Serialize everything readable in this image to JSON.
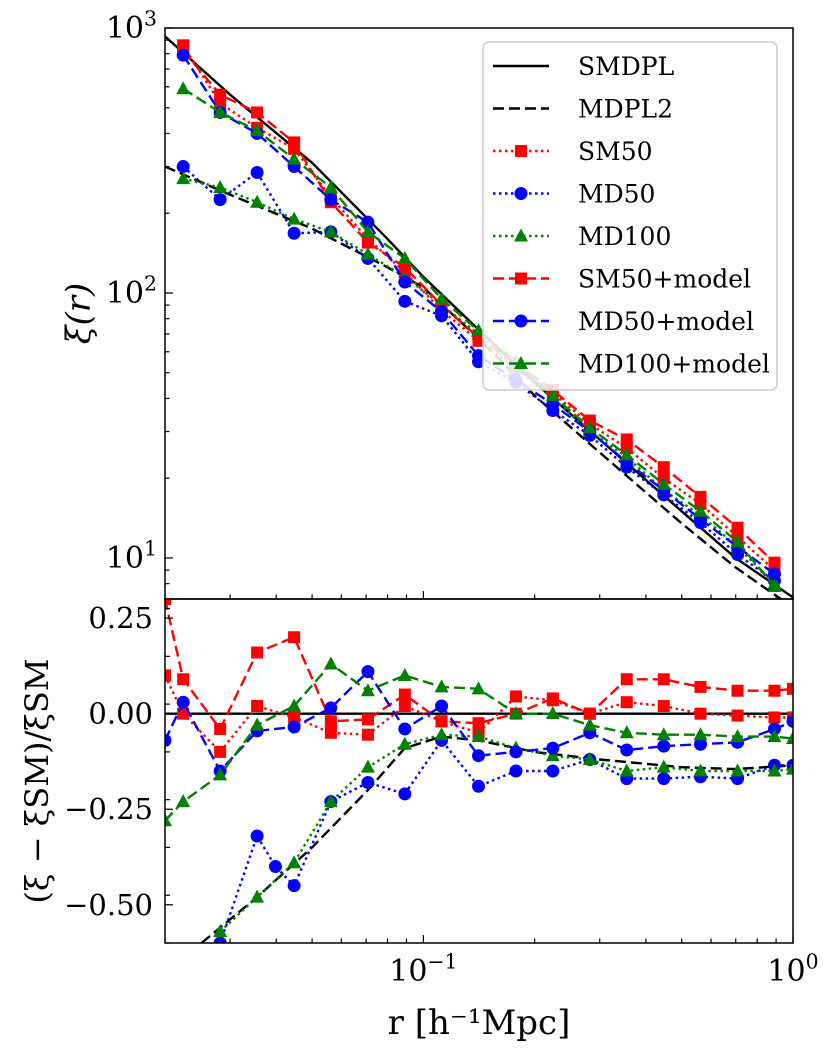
{
  "chart_data": [
    {
      "type": "line",
      "panel": "top",
      "xscale": "log",
      "yscale": "log",
      "xlim": [
        0.02,
        1.0
      ],
      "ylim": [
        7.0,
        1000
      ],
      "ylabel": "ξ(r)",
      "yticks": [
        {
          "value": 10,
          "base": "10",
          "exp": "1"
        },
        {
          "value": 100,
          "base": "10",
          "exp": "2"
        },
        {
          "value": 1000,
          "base": "10",
          "exp": "3"
        }
      ],
      "legend_position": "top-right",
      "series": [
        {
          "name": "SMDPL",
          "color": "#000000",
          "dash": "solid",
          "marker": "none",
          "x": [
            0.02,
            0.03,
            0.05,
            0.08,
            0.1,
            0.15,
            0.2,
            0.3,
            0.5,
            0.7,
            1.0
          ],
          "y": [
            930,
            560,
            310,
            160,
            115,
            67,
            46,
            28,
            15,
            10,
            7.1
          ]
        },
        {
          "name": "MDPL2",
          "color": "#000000",
          "dash": "dashed",
          "marker": "none",
          "x": [
            0.02,
            0.03,
            0.05,
            0.08,
            0.1,
            0.15,
            0.2,
            0.3,
            0.5,
            0.7,
            1.0
          ],
          "y": [
            300,
            235,
            175,
            125,
            105,
            62,
            41,
            25,
            13.5,
            9.2,
            6.5
          ]
        },
        {
          "name": "SM50",
          "color": "#ff0000",
          "dash": "dotted",
          "marker": "square",
          "x": [
            0.0224,
            0.0282,
            0.0355,
            0.0447,
            0.0562,
            0.0708,
            0.0891,
            0.112,
            0.141,
            0.178,
            0.224,
            0.282,
            0.355,
            0.447,
            0.562,
            0.708,
            0.891
          ],
          "y": [
            860,
            520,
            420,
            350,
            230,
            160,
            120,
            86,
            66,
            52,
            42,
            32,
            26,
            20,
            16,
            12,
            9
          ]
        },
        {
          "name": "MD50",
          "color": "#0000ff",
          "dash": "dotted",
          "marker": "circle",
          "x": [
            0.0224,
            0.0282,
            0.0355,
            0.0447,
            0.0562,
            0.0708,
            0.0891,
            0.112,
            0.141,
            0.178,
            0.224,
            0.282,
            0.355,
            0.447,
            0.562,
            0.708,
            0.891
          ],
          "y": [
            300,
            225,
            285,
            168,
            170,
            135,
            93,
            82,
            55,
            46,
            36,
            29,
            22,
            17.3,
            13.6,
            10.3,
            8.2
          ]
        },
        {
          "name": "MD100",
          "color": "#008000",
          "dash": "dotted",
          "marker": "triangle",
          "x": [
            0.0224,
            0.0282,
            0.0355,
            0.0447,
            0.0562,
            0.0708,
            0.0891,
            0.112,
            0.141,
            0.178,
            0.224,
            0.282,
            0.355,
            0.447,
            0.562,
            0.708,
            0.891
          ],
          "y": [
            270,
            250,
            220,
            190,
            170,
            140,
            115,
            90,
            70,
            52,
            40,
            30,
            24,
            18,
            14.5,
            11,
            8
          ]
        },
        {
          "name": "SM50+model",
          "color": "#ff0000",
          "dash": "dashed",
          "marker": "square",
          "x": [
            0.0224,
            0.0282,
            0.0355,
            0.0447,
            0.0562,
            0.0708,
            0.0891,
            0.112,
            0.141,
            0.178,
            0.224,
            0.282,
            0.355,
            0.447,
            0.562,
            0.708,
            0.891
          ],
          "y": [
            820,
            560,
            480,
            370,
            220,
            155,
            125,
            90,
            68,
            54,
            43,
            33,
            28,
            22,
            17,
            13,
            9.6
          ]
        },
        {
          "name": "MD50+model",
          "color": "#0000ff",
          "dash": "dashed",
          "marker": "circle",
          "x": [
            0.0224,
            0.0282,
            0.0355,
            0.0447,
            0.0562,
            0.0708,
            0.0891,
            0.112,
            0.141,
            0.178,
            0.224,
            0.282,
            0.355,
            0.447,
            0.562,
            0.708,
            0.891
          ],
          "y": [
            790,
            480,
            400,
            300,
            225,
            185,
            110,
            85,
            58,
            47,
            38,
            30,
            23,
            18,
            14,
            11,
            8.7
          ]
        },
        {
          "name": "MD100+model",
          "color": "#008000",
          "dash": "dashed",
          "marker": "triangle",
          "x": [
            0.0224,
            0.0282,
            0.0355,
            0.0447,
            0.0562,
            0.0708,
            0.0891,
            0.112,
            0.141,
            0.178,
            0.224,
            0.282,
            0.355,
            0.447,
            0.562,
            0.708,
            0.891
          ],
          "y": [
            590,
            480,
            410,
            320,
            250,
            170,
            135,
            95,
            72,
            55,
            41,
            31,
            24.5,
            19,
            15,
            11.5,
            7.8
          ]
        }
      ]
    },
    {
      "type": "line",
      "panel": "bottom",
      "xscale": "log",
      "yscale": "linear",
      "xlim": [
        0.02,
        1.0
      ],
      "ylim": [
        -0.6,
        0.3
      ],
      "xlabel": "r [h⁻¹Mpc]",
      "ylabel": "(ξ − ξSM)/ξSM",
      "xticks": [
        {
          "value": 0.1,
          "base": "10",
          "exp": "−1"
        },
        {
          "value": 1.0,
          "base": "10",
          "exp": "0"
        }
      ],
      "yticks": [
        {
          "value": 0.25,
          "label": "0.25"
        },
        {
          "value": 0.0,
          "label": "0.00"
        },
        {
          "value": -0.25,
          "label": "−0.25"
        },
        {
          "value": -0.5,
          "label": "−0.50"
        }
      ],
      "series": [
        {
          "name": "SMDPL",
          "color": "#000000",
          "dash": "solid",
          "marker": "none",
          "x": [
            0.02,
            1.0
          ],
          "y": [
            0.0,
            0.0
          ]
        },
        {
          "name": "MDPL2",
          "color": "#000000",
          "dash": "dashed",
          "marker": "none",
          "x": [
            0.0251,
            0.0355,
            0.05,
            0.0708,
            0.0891,
            0.112,
            0.141,
            0.2,
            0.3,
            0.5,
            0.7,
            1.0
          ],
          "y": [
            -0.6,
            -0.48,
            -0.35,
            -0.2,
            -0.09,
            -0.06,
            -0.07,
            -0.1,
            -0.12,
            -0.14,
            -0.145,
            -0.135
          ]
        },
        {
          "name": "SM50",
          "color": "#ff0000",
          "dash": "dotted",
          "marker": "square",
          "x": [
            0.02,
            0.0224,
            0.0282,
            0.0355,
            0.0447,
            0.0562,
            0.0708,
            0.0891,
            0.112,
            0.141,
            0.178,
            0.224,
            0.282,
            0.355,
            0.447,
            0.562,
            0.708,
            0.891,
            1.0
          ],
          "y": [
            0.1,
            0.0,
            -0.1,
            0.02,
            -0.01,
            -0.05,
            -0.055,
            0.02,
            -0.02,
            -0.05,
            0.045,
            0.035,
            0.0,
            0.03,
            0.02,
            0.0,
            -0.005,
            -0.01,
            -0.01
          ]
        },
        {
          "name": "MD50",
          "color": "#0000ff",
          "dash": "dotted",
          "marker": "circle",
          "x": [
            0.0282,
            0.0355,
            0.0398,
            0.0447,
            0.0562,
            0.0708,
            0.0891,
            0.112,
            0.141,
            0.178,
            0.224,
            0.282,
            0.355,
            0.447,
            0.562,
            0.708,
            0.891,
            1.0
          ],
          "y": [
            -0.6,
            -0.32,
            -0.4,
            -0.45,
            -0.23,
            -0.18,
            -0.21,
            -0.07,
            -0.19,
            -0.15,
            -0.15,
            -0.12,
            -0.17,
            -0.17,
            -0.165,
            -0.17,
            -0.135,
            -0.135
          ]
        },
        {
          "name": "MD100",
          "color": "#008000",
          "dash": "dotted",
          "marker": "triangle",
          "x": [
            0.0282,
            0.0355,
            0.0447,
            0.0562,
            0.0708,
            0.0891,
            0.112,
            0.141,
            0.178,
            0.224,
            0.282,
            0.355,
            0.447,
            0.562,
            0.708,
            0.891,
            1.0
          ],
          "y": [
            -0.57,
            -0.48,
            -0.39,
            -0.23,
            -0.14,
            -0.08,
            -0.055,
            -0.06,
            -0.09,
            -0.11,
            -0.12,
            -0.15,
            -0.14,
            -0.15,
            -0.15,
            -0.15,
            -0.145
          ]
        },
        {
          "name": "SM50+model",
          "color": "#ff0000",
          "dash": "dashed",
          "marker": "square",
          "x": [
            0.02,
            0.0224,
            0.0282,
            0.0355,
            0.0447,
            0.0562,
            0.0708,
            0.0891,
            0.112,
            0.141,
            0.178,
            0.224,
            0.282,
            0.355,
            0.447,
            0.562,
            0.708,
            0.891,
            1.0
          ],
          "y": [
            0.3,
            0.09,
            -0.04,
            0.16,
            0.2,
            -0.02,
            -0.015,
            0.05,
            -0.02,
            -0.025,
            0.0,
            0.04,
            0.0,
            0.09,
            0.09,
            0.07,
            0.06,
            0.06,
            0.065
          ]
        },
        {
          "name": "MD50+model",
          "color": "#0000ff",
          "dash": "dashed",
          "marker": "circle",
          "x": [
            0.02,
            0.0224,
            0.0282,
            0.0355,
            0.0447,
            0.0562,
            0.0708,
            0.0891,
            0.112,
            0.141,
            0.178,
            0.224,
            0.282,
            0.355,
            0.447,
            0.562,
            0.708,
            0.891,
            1.0
          ],
          "y": [
            -0.07,
            0.03,
            -0.15,
            -0.045,
            -0.035,
            0.015,
            0.11,
            -0.04,
            0.02,
            -0.11,
            -0.1,
            -0.09,
            -0.05,
            -0.095,
            -0.085,
            -0.08,
            -0.075,
            -0.04,
            -0.02
          ]
        },
        {
          "name": "MD100+model",
          "color": "#008000",
          "dash": "dashed",
          "marker": "triangle",
          "x": [
            0.02,
            0.0224,
            0.0282,
            0.0355,
            0.0447,
            0.0562,
            0.0708,
            0.0891,
            0.112,
            0.141,
            0.178,
            0.224,
            0.282,
            0.355,
            0.447,
            0.562,
            0.708,
            0.891,
            1.0
          ],
          "y": [
            -0.28,
            -0.23,
            -0.16,
            -0.03,
            0.02,
            0.13,
            0.06,
            0.1,
            0.07,
            0.065,
            0.0,
            0.0,
            -0.03,
            -0.05,
            -0.055,
            -0.055,
            -0.06,
            -0.06,
            -0.065
          ]
        }
      ]
    }
  ]
}
